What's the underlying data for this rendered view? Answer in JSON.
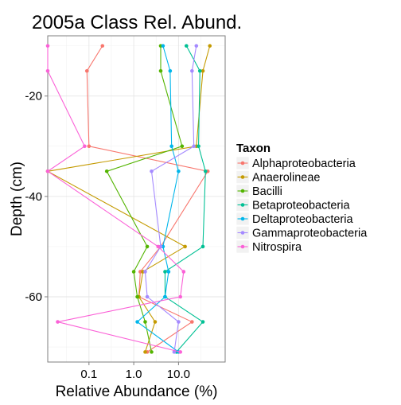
{
  "chart_data": {
    "type": "line",
    "title": "2005a Class Rel. Abund.",
    "xlabel": "Relative Abundance (%)",
    "ylabel": "Depth (cm)",
    "x_scale": "log10",
    "xlim": [
      0.012,
      110
    ],
    "ylim": [
      -73,
      -8
    ],
    "x_ticks": [
      0.1,
      1.0,
      10.0
    ],
    "x_tick_labels": [
      "0.1",
      "1.0",
      "10.0"
    ],
    "y_ticks": [
      -20,
      -40,
      -60
    ],
    "y_tick_labels": [
      "-20",
      "-40",
      "-60"
    ],
    "grid": true,
    "legend": {
      "title": "Taxon",
      "position": "right"
    },
    "series": [
      {
        "name": "Alphaproteobacteria",
        "color": "#F8766D",
        "points": [
          [
            0.2,
            -10
          ],
          [
            0.09,
            -15
          ],
          [
            0.1,
            -30
          ],
          [
            45,
            -35
          ],
          [
            4,
            -50
          ],
          [
            1.4,
            -55
          ],
          [
            1.3,
            -60
          ],
          [
            20,
            -65
          ],
          [
            2.0,
            -71
          ]
        ]
      },
      {
        "name": "Anaerolineae",
        "color": "#C49A00",
        "points": [
          [
            50,
            -10
          ],
          [
            35,
            -15
          ],
          [
            25,
            -30
          ],
          [
            0.012,
            -35
          ],
          [
            14,
            -50
          ],
          [
            1.6,
            -55
          ],
          [
            1.3,
            -60
          ],
          [
            3.0,
            -65
          ],
          [
            1.8,
            -71
          ]
        ]
      },
      {
        "name": "Bacilli",
        "color": "#53B400",
        "points": [
          [
            4.0,
            -10
          ],
          [
            4.0,
            -15
          ],
          [
            12,
            -30
          ],
          [
            0.25,
            -35
          ],
          [
            2.0,
            -50
          ],
          [
            1.0,
            -55
          ],
          [
            1.2,
            -60
          ],
          [
            1.8,
            -65
          ],
          [
            2.5,
            -71
          ]
        ]
      },
      {
        "name": "Betaproteobacteria",
        "color": "#00C094",
        "points": [
          [
            15,
            -10
          ],
          [
            30,
            -15
          ],
          [
            28,
            -30
          ],
          [
            40,
            -35
          ],
          [
            35,
            -50
          ],
          [
            5,
            -55
          ],
          [
            5,
            -60
          ],
          [
            35,
            -65
          ],
          [
            9,
            -71
          ]
        ]
      },
      {
        "name": "Deltaproteobacteria",
        "color": "#00B6EB",
        "points": [
          [
            4.5,
            -10
          ],
          [
            6.5,
            -15
          ],
          [
            7,
            -30
          ],
          [
            10,
            -35
          ],
          [
            4.5,
            -50
          ],
          [
            6,
            -55
          ],
          [
            5,
            -60
          ],
          [
            1.2,
            -65
          ],
          [
            10,
            -71
          ]
        ]
      },
      {
        "name": "Gammaproteobacteria",
        "color": "#A58AFF",
        "points": [
          [
            25,
            -10
          ],
          [
            20,
            -15
          ],
          [
            22,
            -30
          ],
          [
            2.5,
            -35
          ],
          [
            4,
            -50
          ],
          [
            1.8,
            -55
          ],
          [
            2.0,
            -60
          ],
          [
            10,
            -65
          ],
          [
            8,
            -71
          ]
        ]
      },
      {
        "name": "Nitrospira",
        "color": "#FB61D7",
        "points": [
          [
            0.012,
            -10
          ],
          [
            0.012,
            -15
          ],
          [
            0.08,
            -30
          ],
          [
            0.012,
            -35
          ],
          [
            3.5,
            -50
          ],
          [
            13,
            -55
          ],
          [
            11,
            -60
          ],
          [
            0.02,
            -65
          ],
          [
            11,
            -71
          ]
        ]
      }
    ]
  }
}
